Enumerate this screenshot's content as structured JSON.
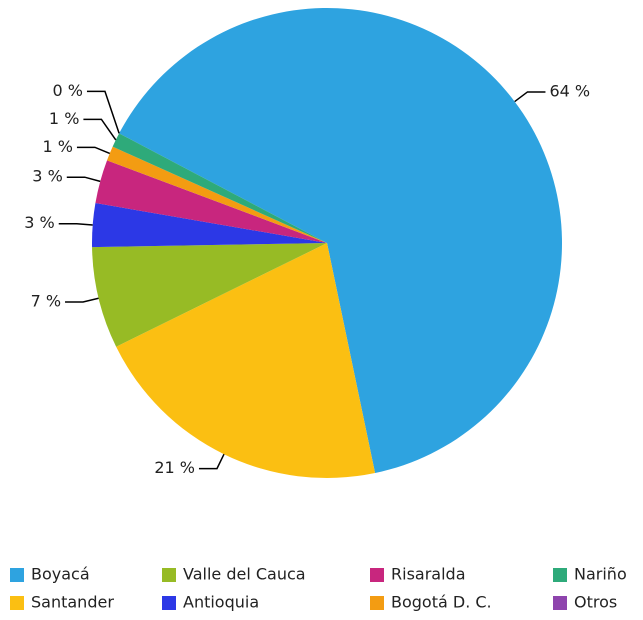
{
  "chart_data": {
    "type": "pie",
    "categories": [
      "Boyacá",
      "Santander",
      "Valle del Cauca",
      "Antioquia",
      "Risaralda",
      "Bogotá D. C.",
      "Nariño",
      "Otros"
    ],
    "values": [
      64,
      21,
      7,
      3,
      3,
      1,
      1,
      0
    ],
    "value_labels": [
      "64 %",
      "21 %",
      "7 %",
      "3 %",
      "3 %",
      "1 %",
      "1 %",
      "0 %"
    ],
    "colors": [
      "#2ea3e0",
      "#fbbf12",
      "#97bb25",
      "#2c38e6",
      "#c8267e",
      "#f39c12",
      "#2eaa7a",
      "#8e44ad"
    ],
    "legend": "bottom"
  }
}
